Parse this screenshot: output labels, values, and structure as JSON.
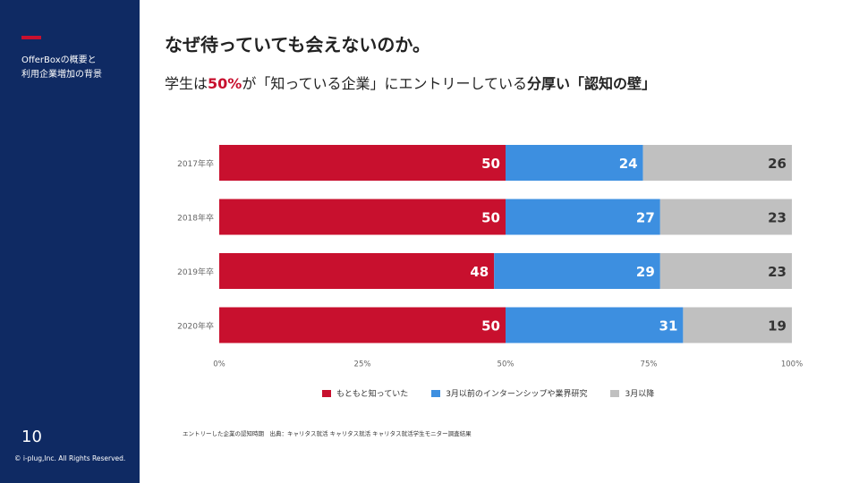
{
  "sidebar": {
    "title_lines": [
      "OfferBoxの概要と",
      "利用企業増加の背景"
    ],
    "page_number": "10",
    "copyright": "© i-plug,Inc. All Rights Reserved."
  },
  "header": {
    "title": "なぜ待っていても会えないのか。",
    "subtitle": {
      "part1": "学生は",
      "pct": "50%",
      "part2": "が「知っている企業」にエントリーしている",
      "strong": "分厚い「認知の壁」"
    }
  },
  "footnote": "エントリーした企業の認知時期　出典：キャリタス就活 キャリタス就活 キャリタス就活学生モニター調査結果",
  "colors": {
    "series1": "#c8102e",
    "series2": "#3d8fe0",
    "series3": "#c0c0c0",
    "sidebar": "#0f2a63"
  },
  "chart_data": {
    "type": "bar",
    "orientation": "horizontal",
    "stacked": true,
    "categories": [
      "2017年卒",
      "2018年卒",
      "2019年卒",
      "2020年卒"
    ],
    "series": [
      {
        "name": "もともと知っていた",
        "values": [
          50,
          50,
          48,
          50
        ]
      },
      {
        "name": "3月以前のインターンシップや業界研究",
        "values": [
          24,
          27,
          29,
          31
        ]
      },
      {
        "name": "3月以降",
        "values": [
          26,
          23,
          23,
          19
        ]
      }
    ],
    "xlim": [
      0,
      100
    ],
    "xticks": [
      "0%",
      "25%",
      "50%",
      "75%",
      "100%"
    ],
    "legend_position": "bottom",
    "grid": false
  }
}
